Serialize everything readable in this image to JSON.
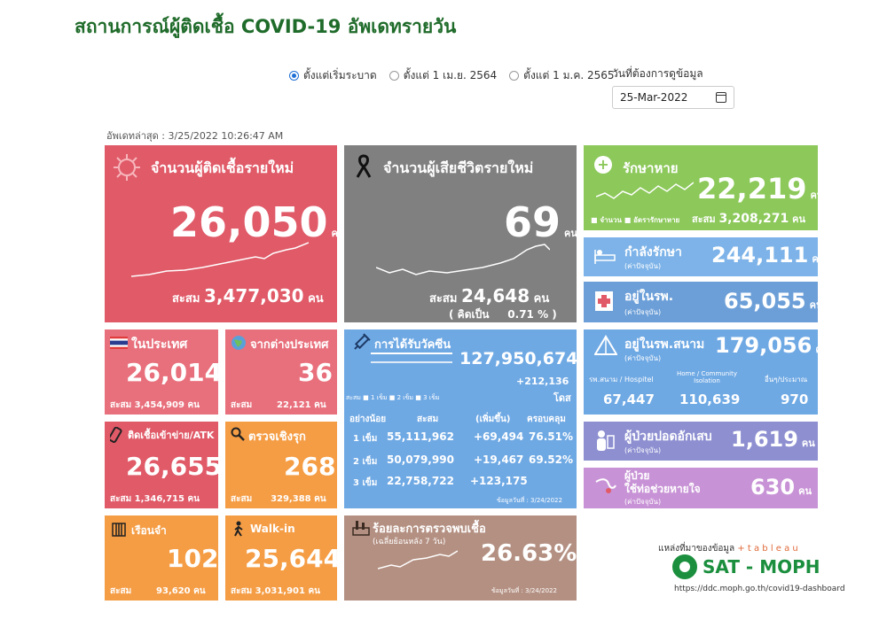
{
  "title": "สถานการณ์ผู้ติดเชื้อ COVID-19 อัพเดทรายวัน",
  "filters": {
    "options": [
      "ตั้งแต่เริ่มระบาด",
      "ตั้งแต่ 1 เม.ย. 2564",
      "ตั้งแต่ 1 ม.ค. 2565"
    ],
    "selected_index": 0,
    "date_label": "วันที่ต้องการดูข้อมูล",
    "date_value": "25-Mar-2022"
  },
  "updated": "อัพเดทล่าสุด : 3/25/2022 10:26:47 AM",
  "unit": "คน",
  "cum_label": "สะสม",
  "new_cases": {
    "title": "จำนวนผู้ติดเชื้อรายใหม่",
    "value": "26,050",
    "cum": "3,477,030"
  },
  "deaths": {
    "title": "จำนวนผู้เสียชีวิตรายใหม่",
    "value": "69",
    "cum": "24,648",
    "pct_label": "( คิดเป็น",
    "pct": "0.71 % )"
  },
  "recovered": {
    "title": "รักษาหาย",
    "value": "22,219",
    "legend_a": "จำนวน",
    "legend_b": "อัตรารักษาหาย",
    "cum": "3,208,271"
  },
  "treating": {
    "title": "กำลังรักษา",
    "sub": "(ค่าปัจจุบัน)",
    "value": "244,111"
  },
  "hospital": {
    "title": "อยู่ในรพ.",
    "sub": "(ค่าปัจจุบัน)",
    "value": "65,055"
  },
  "field_hosp": {
    "title": "อยู่ในรพ.สนาม",
    "sub": "(ค่าปัจจุบัน)",
    "value": "179,056",
    "cols": [
      {
        "label": "รพ.สนาม / Hospitel",
        "value": "67,447"
      },
      {
        "label": "Home / Community Isolation",
        "value": "110,639"
      },
      {
        "label": "อื่นๆ/ประมาณ",
        "value": "970"
      }
    ]
  },
  "severe": {
    "title": "ผู้ป่วยปอดอักเสบ",
    "sub": "(ค่าปัจจุบัน)",
    "value": "1,619"
  },
  "ventilator": {
    "title": "ผู้ป่วย",
    "title2": "ใช้ท่อช่วยหายใจ",
    "sub": "(ค่าปัจจุบัน)",
    "value": "630"
  },
  "domestic": {
    "title": "ในประเทศ",
    "value": "26,014",
    "cum": "3,454,909"
  },
  "imported": {
    "title": "จากต่างประเทศ",
    "value": "36",
    "cum": "22,121"
  },
  "prison_atk": {
    "title": "ติดเชื้อเข้าข่าย/ATK",
    "value": "26,655",
    "cum": "1,346,715"
  },
  "active_search": {
    "title": "ตรวจเชิงรุก",
    "value": "268",
    "cum": "329,388"
  },
  "prison": {
    "title": "เรือนจำ",
    "value": "102",
    "cum": "93,620"
  },
  "walkin": {
    "title": "Walk-in",
    "value": "25,644",
    "cum": "3,031,901"
  },
  "vaccine": {
    "title": "การได้รับวัคซีน",
    "total": "127,950,674",
    "increase": "+212,136",
    "dose_unit": "โดส",
    "legend": [
      "สะสม",
      "1 เข็ม",
      "2 เข็ม",
      "3 เข็ม"
    ],
    "headers": [
      "อย่างน้อย",
      "สะสม",
      "(เพิ่มขึ้น)",
      "ครอบคลุม"
    ],
    "rows": [
      {
        "dose": "1 เข็ม",
        "cum": "55,111,962",
        "inc": "+69,494",
        "cov": "76.51%"
      },
      {
        "dose": "2 เข็ม",
        "cum": "50,079,990",
        "inc": "+19,467",
        "cov": "69.52%"
      },
      {
        "dose": "3 เข็ม",
        "cum": "22,758,722",
        "inc": "+123,175",
        "cov": ""
      }
    ],
    "as_of": "ข้อมูลวันที่ : 3/24/2022"
  },
  "positivity": {
    "title": "ร้อยละการตรวจพบเชื้อ",
    "sub": "(เฉลี่ยย้อนหลัง 7 วัน)",
    "value": "26.63%",
    "as_of": "ข้อมูลวันที่ : 3/24/2022"
  },
  "source": {
    "label": "แหล่งที่มาของข้อมูล",
    "tableau": "+ t a b l e a u",
    "org": "SAT - MOPH",
    "url": "https://ddc.moph.go.th/covid19-dashboard"
  }
}
